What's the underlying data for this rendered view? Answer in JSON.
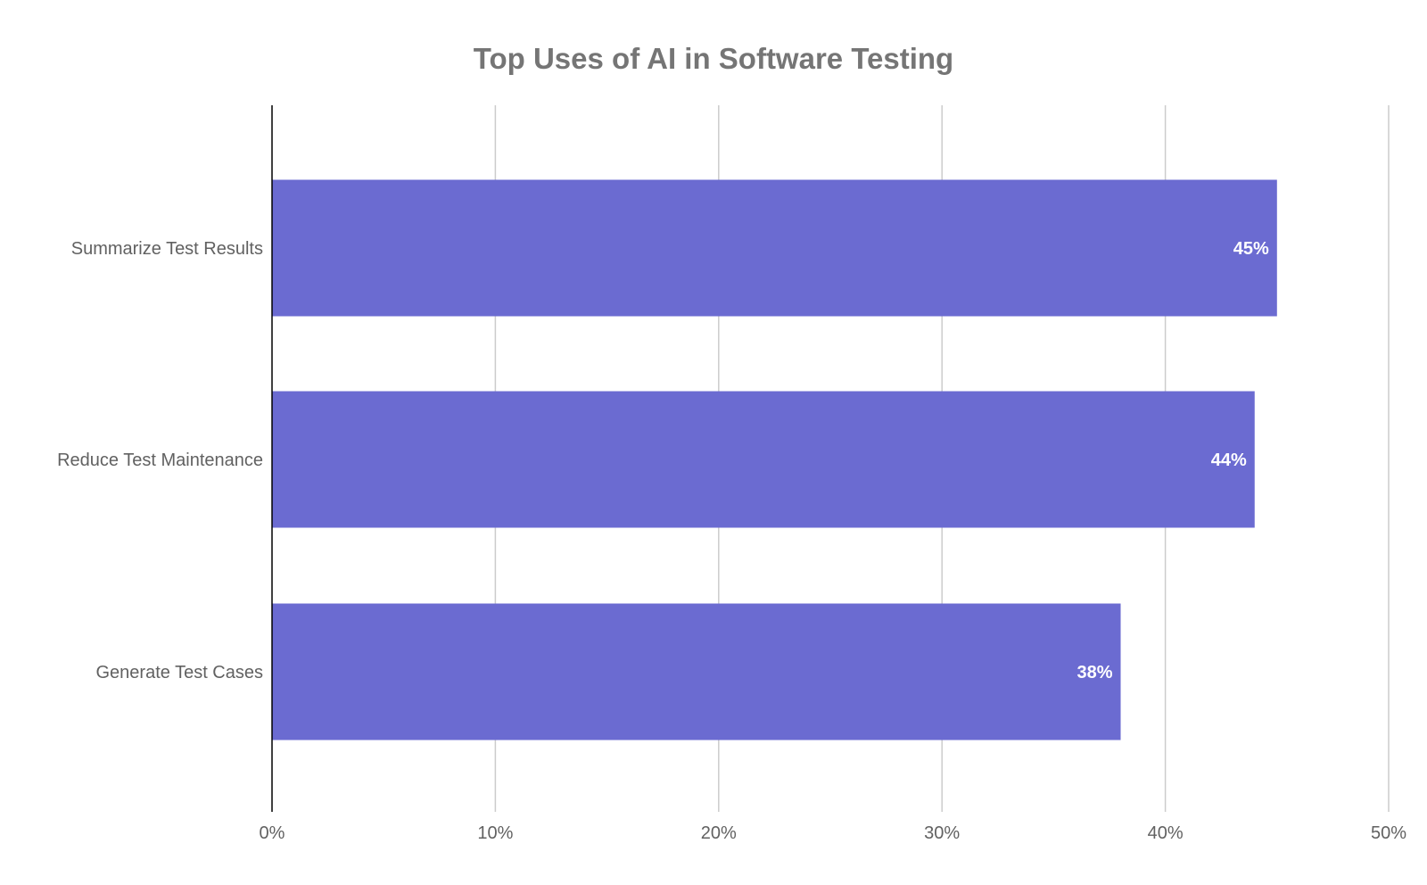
{
  "chart_data": {
    "type": "bar",
    "orientation": "horizontal",
    "title": "Top Uses of AI in Software Testing",
    "xlabel": "",
    "ylabel": "",
    "categories": [
      "Summarize Test Results",
      "Reduce Test Maintenance",
      "Generate Test Cases"
    ],
    "values": [
      45,
      44,
      38
    ],
    "data_labels": [
      "45%",
      "44%",
      "38%"
    ],
    "xlim": [
      0,
      50
    ],
    "x_ticks": [
      0,
      10,
      20,
      30,
      40,
      50
    ],
    "x_tick_labels": [
      "0%",
      "10%",
      "20%",
      "30%",
      "40%",
      "50%"
    ],
    "grid": true,
    "legend": "none",
    "bar_color": "#6b6bd1"
  }
}
